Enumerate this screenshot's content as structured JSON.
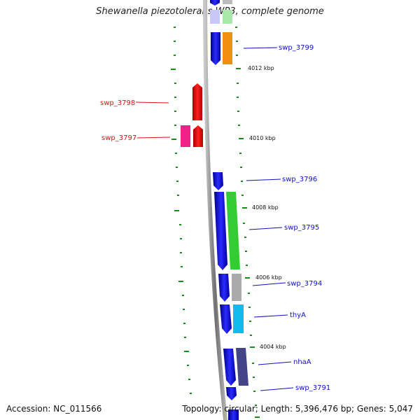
{
  "header": {
    "title": "Shewanella piezotolerans WP3, complete genome"
  },
  "footer": {
    "accession": "Accession: NC_011566",
    "summary": "Topology: circular; Length: 5,396,476 bp; Genes: 5,047"
  },
  "genes": [
    {
      "name": "swp_3799",
      "strand": "minus",
      "color": "#1515e6",
      "tag": "#f09010"
    },
    {
      "name": "swp_3798",
      "strand": "plus",
      "color": "#ee1111"
    },
    {
      "name": "swp_3797",
      "strand": "plus",
      "color": "#ee1111",
      "tag": "#ee2288"
    },
    {
      "name": "swp_3796",
      "strand": "minus",
      "color": "#1515e6"
    },
    {
      "name": "swp_3795",
      "strand": "minus",
      "color": "#1515e6",
      "tag": "#33cc33"
    },
    {
      "name": "swp_3794",
      "strand": "minus",
      "color": "#1515e6",
      "tag": "#aaaaaa"
    },
    {
      "name": "thyA",
      "strand": "minus",
      "color": "#1515e6",
      "tag": "#11bbee"
    },
    {
      "name": "nhaA",
      "strand": "minus",
      "color": "#1515e6",
      "tag": "#444488"
    },
    {
      "name": "swp_3791",
      "strand": "minus",
      "color": "#1515e6"
    }
  ],
  "scale_labels": [
    "4012 kbp",
    "4010 kbp",
    "4008 kbp",
    "4006 kbp",
    "4004 kbp"
  ],
  "colors": {
    "backbone": "#808080",
    "tick": "#1a8c1a",
    "minus_label": "#1010c0",
    "plus_label": "#dd1111"
  }
}
